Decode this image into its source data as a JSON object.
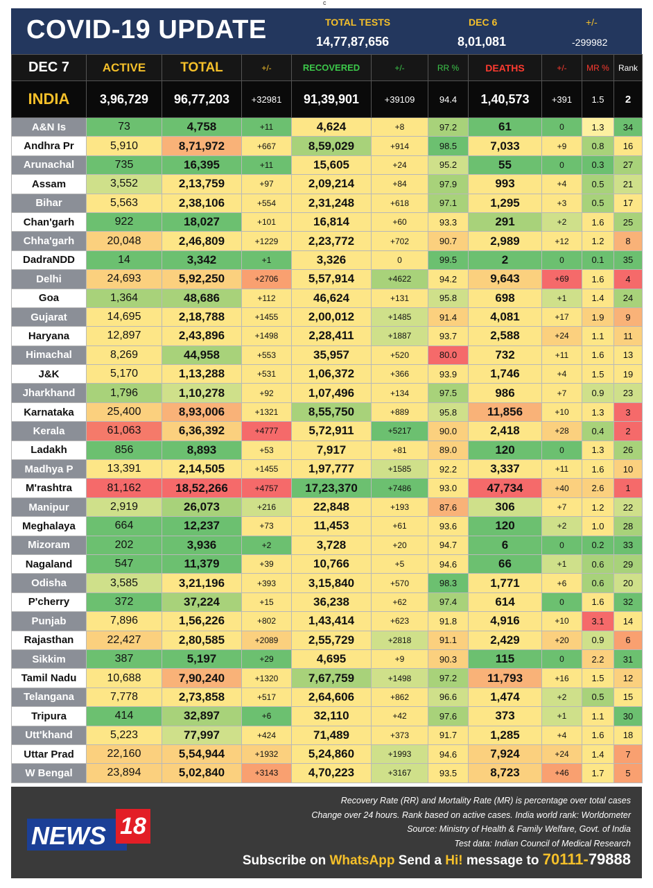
{
  "top_marker": "c",
  "header": {
    "title": "COVID-19 UPDATE",
    "total_tests_label": "TOTAL TESTS",
    "total_tests_value": "14,77,87,656",
    "date_label": "DEC 6",
    "date_value": "8,01,081",
    "change_label": "+/-",
    "change_value": "-299982"
  },
  "columns": {
    "date": "DEC 7",
    "active": "ACTIVE",
    "total": "TOTAL",
    "total_change": "+/-",
    "recovered": "RECOVERED",
    "recovered_change": "+/-",
    "rr": "RR %",
    "deaths": "DEATHS",
    "deaths_change": "+/-",
    "mr": "MR %",
    "rank": "Rank"
  },
  "column_colors": {
    "date": "#ffffff",
    "active": "#f5c02a",
    "total": "#f5c02a",
    "total_change": "#f5c02a",
    "recovered": "#3cc84a",
    "recovered_change": "#3cc84a",
    "rr": "#3cc84a",
    "deaths": "#ff3b30",
    "deaths_change": "#ff3b30",
    "mr": "#ff3b30",
    "rank": "#ffffff"
  },
  "india": {
    "name": "INDIA",
    "active": "3,96,729",
    "total": "96,77,203",
    "total_change": "+32981",
    "recovered": "91,39,901",
    "recovered_change": "+39109",
    "rr": "94.4",
    "deaths": "1,40,573",
    "deaths_change": "+391",
    "mr": "1.5",
    "rank": "2"
  },
  "states": [
    {
      "name": "A&N Is",
      "active": "73",
      "total": "4,758",
      "total_change": "+11",
      "recovered": "4,624",
      "recovered_change": "+8",
      "rr": "97.2",
      "deaths": "61",
      "deaths_change": "0",
      "mr": "1.3",
      "rank": "34",
      "colors": [
        "#6cc070",
        "#6cc070",
        "#6cc070",
        "#fde687",
        "#fde687",
        "#a8d27a",
        "#6cc070",
        "#6cc070",
        "#fdf0a0",
        "#6cc070"
      ]
    },
    {
      "name": "Andhra Pr",
      "active": "5,910",
      "total": "8,71,972",
      "total_change": "+667",
      "recovered": "8,59,029",
      "recovered_change": "+914",
      "rr": "98.5",
      "deaths": "7,033",
      "deaths_change": "+9",
      "mr": "0.8",
      "rank": "16",
      "colors": [
        "#fde687",
        "#f9b278",
        "#fde687",
        "#a8d27a",
        "#fde687",
        "#6cc070",
        "#fde687",
        "#fde687",
        "#a8d27a",
        "#fde687"
      ]
    },
    {
      "name": "Arunachal",
      "active": "735",
      "total": "16,395",
      "total_change": "+11",
      "recovered": "15,605",
      "recovered_change": "+24",
      "rr": "95.2",
      "deaths": "55",
      "deaths_change": "0",
      "mr": "0.3",
      "rank": "27",
      "colors": [
        "#6cc070",
        "#6cc070",
        "#6cc070",
        "#fde687",
        "#fde687",
        "#cfe08a",
        "#6cc070",
        "#6cc070",
        "#6cc070",
        "#a8d27a"
      ]
    },
    {
      "name": "Assam",
      "active": "3,552",
      "total": "2,13,759",
      "total_change": "+97",
      "recovered": "2,09,214",
      "recovered_change": "+84",
      "rr": "97.9",
      "deaths": "993",
      "deaths_change": "+4",
      "mr": "0.5",
      "rank": "21",
      "colors": [
        "#cfe08a",
        "#fde687",
        "#fde687",
        "#fde687",
        "#fde687",
        "#a8d27a",
        "#fde687",
        "#fde687",
        "#a8d27a",
        "#cfe08a"
      ]
    },
    {
      "name": "Bihar",
      "active": "5,563",
      "total": "2,38,106",
      "total_change": "+554",
      "recovered": "2,31,248",
      "recovered_change": "+618",
      "rr": "97.1",
      "deaths": "1,295",
      "deaths_change": "+3",
      "mr": "0.5",
      "rank": "17",
      "colors": [
        "#fde687",
        "#fde687",
        "#fde687",
        "#fde687",
        "#fde687",
        "#a8d27a",
        "#fde687",
        "#fde687",
        "#a8d27a",
        "#fde687"
      ]
    },
    {
      "name": "Chan'garh",
      "active": "922",
      "total": "18,027",
      "total_change": "+101",
      "recovered": "16,814",
      "recovered_change": "+60",
      "rr": "93.3",
      "deaths": "291",
      "deaths_change": "+2",
      "mr": "1.6",
      "rank": "25",
      "colors": [
        "#6cc070",
        "#6cc070",
        "#fde687",
        "#fde687",
        "#fde687",
        "#fde687",
        "#a8d27a",
        "#cfe08a",
        "#fde687",
        "#a8d27a"
      ]
    },
    {
      "name": "Chha'garh",
      "active": "20,048",
      "total": "2,46,809",
      "total_change": "+1229",
      "recovered": "2,23,772",
      "recovered_change": "+702",
      "rr": "90.7",
      "deaths": "2,989",
      "deaths_change": "+12",
      "mr": "1.2",
      "rank": "8",
      "colors": [
        "#fbd07e",
        "#fde687",
        "#fde687",
        "#fde687",
        "#fde687",
        "#fbd07e",
        "#fde687",
        "#fde687",
        "#fde687",
        "#f9b278"
      ]
    },
    {
      "name": "DadraNDD",
      "active": "14",
      "total": "3,342",
      "total_change": "+1",
      "recovered": "3,326",
      "recovered_change": "0",
      "rr": "99.5",
      "deaths": "2",
      "deaths_change": "0",
      "mr": "0.1",
      "rank": "35",
      "colors": [
        "#6cc070",
        "#6cc070",
        "#6cc070",
        "#fde687",
        "#fde687",
        "#6cc070",
        "#6cc070",
        "#6cc070",
        "#6cc070",
        "#6cc070"
      ]
    },
    {
      "name": "Delhi",
      "active": "24,693",
      "total": "5,92,250",
      "total_change": "+2706",
      "recovered": "5,57,914",
      "recovered_change": "+4622",
      "rr": "94.2",
      "deaths": "9,643",
      "deaths_change": "+69",
      "mr": "1.6",
      "rank": "4",
      "colors": [
        "#fbd07e",
        "#fbd07e",
        "#f9a070",
        "#fde687",
        "#a8d27a",
        "#fde687",
        "#fbd07e",
        "#f56a6a",
        "#fde687",
        "#f56a6a"
      ]
    },
    {
      "name": "Goa",
      "active": "1,364",
      "total": "48,686",
      "total_change": "+112",
      "recovered": "46,624",
      "recovered_change": "+131",
      "rr": "95.8",
      "deaths": "698",
      "deaths_change": "+1",
      "mr": "1.4",
      "rank": "24",
      "colors": [
        "#a8d27a",
        "#a8d27a",
        "#fde687",
        "#fde687",
        "#fde687",
        "#cfe08a",
        "#fde687",
        "#cfe08a",
        "#fde687",
        "#a8d27a"
      ]
    },
    {
      "name": "Gujarat",
      "active": "14,695",
      "total": "2,18,788",
      "total_change": "+1455",
      "recovered": "2,00,012",
      "recovered_change": "+1485",
      "rr": "91.4",
      "deaths": "4,081",
      "deaths_change": "+17",
      "mr": "1.9",
      "rank": "9",
      "colors": [
        "#fde687",
        "#fde687",
        "#fde687",
        "#fde687",
        "#cfe08a",
        "#fbd07e",
        "#fde687",
        "#fde687",
        "#fbd07e",
        "#f9b278"
      ]
    },
    {
      "name": "Haryana",
      "active": "12,897",
      "total": "2,43,896",
      "total_change": "+1498",
      "recovered": "2,28,411",
      "recovered_change": "+1887",
      "rr": "93.7",
      "deaths": "2,588",
      "deaths_change": "+24",
      "mr": "1.1",
      "rank": "11",
      "colors": [
        "#fde687",
        "#fde687",
        "#fde687",
        "#fde687",
        "#cfe08a",
        "#fde687",
        "#fde687",
        "#fbd07e",
        "#fde687",
        "#fbd07e"
      ]
    },
    {
      "name": "Himachal",
      "active": "8,269",
      "total": "44,958",
      "total_change": "+553",
      "recovered": "35,957",
      "recovered_change": "+520",
      "rr": "80.0",
      "deaths": "732",
      "deaths_change": "+11",
      "mr": "1.6",
      "rank": "13",
      "colors": [
        "#fde687",
        "#a8d27a",
        "#fde687",
        "#fde687",
        "#fde687",
        "#f56a6a",
        "#fde687",
        "#fde687",
        "#fde687",
        "#fde687"
      ]
    },
    {
      "name": "J&K",
      "active": "5,170",
      "total": "1,13,288",
      "total_change": "+531",
      "recovered": "1,06,372",
      "recovered_change": "+366",
      "rr": "93.9",
      "deaths": "1,746",
      "deaths_change": "+4",
      "mr": "1.5",
      "rank": "19",
      "colors": [
        "#fde687",
        "#fde687",
        "#fde687",
        "#fde687",
        "#fde687",
        "#fde687",
        "#fde687",
        "#fde687",
        "#fde687",
        "#fde687"
      ]
    },
    {
      "name": "Jharkhand",
      "active": "1,796",
      "total": "1,10,278",
      "total_change": "+92",
      "recovered": "1,07,496",
      "recovered_change": "+134",
      "rr": "97.5",
      "deaths": "986",
      "deaths_change": "+7",
      "mr": "0.9",
      "rank": "23",
      "colors": [
        "#a8d27a",
        "#cfe08a",
        "#fde687",
        "#fde687",
        "#fde687",
        "#a8d27a",
        "#fde687",
        "#fde687",
        "#cfe08a",
        "#cfe08a"
      ]
    },
    {
      "name": "Karnataka",
      "active": "25,400",
      "total": "8,93,006",
      "total_change": "+1321",
      "recovered": "8,55,750",
      "recovered_change": "+889",
      "rr": "95.8",
      "deaths": "11,856",
      "deaths_change": "+10",
      "mr": "1.3",
      "rank": "3",
      "colors": [
        "#fbd07e",
        "#f9b278",
        "#fde687",
        "#a8d27a",
        "#fde687",
        "#cfe08a",
        "#f9b278",
        "#fde687",
        "#fde687",
        "#f56a6a"
      ]
    },
    {
      "name": "Kerala",
      "active": "61,063",
      "total": "6,36,392",
      "total_change": "+4777",
      "recovered": "5,72,911",
      "recovered_change": "+5217",
      "rr": "90.0",
      "deaths": "2,418",
      "deaths_change": "+28",
      "mr": "0.4",
      "rank": "2",
      "colors": [
        "#f57a6a",
        "#fbd07e",
        "#f56a6a",
        "#fde687",
        "#6cc070",
        "#fbd07e",
        "#fde687",
        "#fbd07e",
        "#a8d27a",
        "#f56a6a"
      ]
    },
    {
      "name": "Ladakh",
      "active": "856",
      "total": "8,893",
      "total_change": "+53",
      "recovered": "7,917",
      "recovered_change": "+81",
      "rr": "89.0",
      "deaths": "120",
      "deaths_change": "0",
      "mr": "1.3",
      "rank": "26",
      "colors": [
        "#6cc070",
        "#6cc070",
        "#fde687",
        "#fde687",
        "#fde687",
        "#fbd07e",
        "#6cc070",
        "#6cc070",
        "#fde687",
        "#a8d27a"
      ]
    },
    {
      "name": "Madhya P",
      "active": "13,391",
      "total": "2,14,505",
      "total_change": "+1455",
      "recovered": "1,97,777",
      "recovered_change": "+1585",
      "rr": "92.2",
      "deaths": "3,337",
      "deaths_change": "+11",
      "mr": "1.6",
      "rank": "10",
      "colors": [
        "#fde687",
        "#fde687",
        "#fde687",
        "#fde687",
        "#cfe08a",
        "#fde687",
        "#fde687",
        "#fde687",
        "#fde687",
        "#fbd07e"
      ]
    },
    {
      "name": "M'rashtra",
      "active": "81,162",
      "total": "18,52,266",
      "total_change": "+4757",
      "recovered": "17,23,370",
      "recovered_change": "+7486",
      "rr": "93.0",
      "deaths": "47,734",
      "deaths_change": "+40",
      "mr": "2.6",
      "rank": "1",
      "colors": [
        "#f56a6a",
        "#f56a6a",
        "#f56a6a",
        "#6cc070",
        "#6cc070",
        "#fde687",
        "#f56a6a",
        "#fbd07e",
        "#fbd07e",
        "#f56a6a"
      ]
    },
    {
      "name": "Manipur",
      "active": "2,919",
      "total": "26,073",
      "total_change": "+216",
      "recovered": "22,848",
      "recovered_change": "+193",
      "rr": "87.6",
      "deaths": "306",
      "deaths_change": "+7",
      "mr": "1.2",
      "rank": "22",
      "colors": [
        "#cfe08a",
        "#a8d27a",
        "#cfe08a",
        "#fde687",
        "#fde687",
        "#f9b278",
        "#cfe08a",
        "#fde687",
        "#fde687",
        "#cfe08a"
      ]
    },
    {
      "name": "Meghalaya",
      "active": "664",
      "total": "12,237",
      "total_change": "+73",
      "recovered": "11,453",
      "recovered_change": "+61",
      "rr": "93.6",
      "deaths": "120",
      "deaths_change": "+2",
      "mr": "1.0",
      "rank": "28",
      "colors": [
        "#6cc070",
        "#6cc070",
        "#fde687",
        "#fde687",
        "#fde687",
        "#fde687",
        "#6cc070",
        "#cfe08a",
        "#fde687",
        "#a8d27a"
      ]
    },
    {
      "name": "Mizoram",
      "active": "202",
      "total": "3,936",
      "total_change": "+2",
      "recovered": "3,728",
      "recovered_change": "+20",
      "rr": "94.7",
      "deaths": "6",
      "deaths_change": "0",
      "mr": "0.2",
      "rank": "33",
      "colors": [
        "#6cc070",
        "#6cc070",
        "#6cc070",
        "#fde687",
        "#fde687",
        "#fde687",
        "#6cc070",
        "#6cc070",
        "#6cc070",
        "#6cc070"
      ]
    },
    {
      "name": "Nagaland",
      "active": "547",
      "total": "11,379",
      "total_change": "+39",
      "recovered": "10,766",
      "recovered_change": "+5",
      "rr": "94.6",
      "deaths": "66",
      "deaths_change": "+1",
      "mr": "0.6",
      "rank": "29",
      "colors": [
        "#6cc070",
        "#6cc070",
        "#fde687",
        "#fde687",
        "#fde687",
        "#fde687",
        "#6cc070",
        "#cfe08a",
        "#a8d27a",
        "#a8d27a"
      ]
    },
    {
      "name": "Odisha",
      "active": "3,585",
      "total": "3,21,196",
      "total_change": "+393",
      "recovered": "3,15,840",
      "recovered_change": "+570",
      "rr": "98.3",
      "deaths": "1,771",
      "deaths_change": "+6",
      "mr": "0.6",
      "rank": "20",
      "colors": [
        "#cfe08a",
        "#fde687",
        "#fde687",
        "#fde687",
        "#fde687",
        "#6cc070",
        "#fde687",
        "#fde687",
        "#a8d27a",
        "#cfe08a"
      ]
    },
    {
      "name": "P'cherry",
      "active": "372",
      "total": "37,224",
      "total_change": "+15",
      "recovered": "36,238",
      "recovered_change": "+62",
      "rr": "97.4",
      "deaths": "614",
      "deaths_change": "0",
      "mr": "1.6",
      "rank": "32",
      "colors": [
        "#6cc070",
        "#a8d27a",
        "#fde687",
        "#fde687",
        "#fde687",
        "#a8d27a",
        "#fde687",
        "#6cc070",
        "#fde687",
        "#6cc070"
      ]
    },
    {
      "name": "Punjab",
      "active": "7,896",
      "total": "1,56,226",
      "total_change": "+802",
      "recovered": "1,43,414",
      "recovered_change": "+623",
      "rr": "91.8",
      "deaths": "4,916",
      "deaths_change": "+10",
      "mr": "3.1",
      "rank": "14",
      "colors": [
        "#fde687",
        "#fde687",
        "#fde687",
        "#fde687",
        "#fde687",
        "#fde687",
        "#fde687",
        "#fde687",
        "#f56a6a",
        "#fde687"
      ]
    },
    {
      "name": "Rajasthan",
      "active": "22,427",
      "total": "2,80,585",
      "total_change": "+2089",
      "recovered": "2,55,729",
      "recovered_change": "+2818",
      "rr": "91.1",
      "deaths": "2,429",
      "deaths_change": "+20",
      "mr": "0.9",
      "rank": "6",
      "colors": [
        "#fbd07e",
        "#fde687",
        "#fbd07e",
        "#fde687",
        "#cfe08a",
        "#fbd07e",
        "#fde687",
        "#fbd07e",
        "#cfe08a",
        "#f9a070"
      ]
    },
    {
      "name": "Sikkim",
      "active": "387",
      "total": "5,197",
      "total_change": "+29",
      "recovered": "4,695",
      "recovered_change": "+9",
      "rr": "90.3",
      "deaths": "115",
      "deaths_change": "0",
      "mr": "2.2",
      "rank": "31",
      "colors": [
        "#6cc070",
        "#6cc070",
        "#6cc070",
        "#fde687",
        "#fde687",
        "#fbd07e",
        "#6cc070",
        "#6cc070",
        "#fbd07e",
        "#6cc070"
      ]
    },
    {
      "name": "Tamil Nadu",
      "active": "10,688",
      "total": "7,90,240",
      "total_change": "+1320",
      "recovered": "7,67,759",
      "recovered_change": "+1498",
      "rr": "97.2",
      "deaths": "11,793",
      "deaths_change": "+16",
      "mr": "1.5",
      "rank": "12",
      "colors": [
        "#fde687",
        "#f9b278",
        "#fde687",
        "#a8d27a",
        "#cfe08a",
        "#a8d27a",
        "#f9b278",
        "#fde687",
        "#fde687",
        "#fbd07e"
      ]
    },
    {
      "name": "Telangana",
      "active": "7,778",
      "total": "2,73,858",
      "total_change": "+517",
      "recovered": "2,64,606",
      "recovered_change": "+862",
      "rr": "96.6",
      "deaths": "1,474",
      "deaths_change": "+2",
      "mr": "0.5",
      "rank": "15",
      "colors": [
        "#fde687",
        "#fde687",
        "#fde687",
        "#fde687",
        "#fde687",
        "#cfe08a",
        "#fde687",
        "#cfe08a",
        "#a8d27a",
        "#fde687"
      ]
    },
    {
      "name": "Tripura",
      "active": "414",
      "total": "32,897",
      "total_change": "+6",
      "recovered": "32,110",
      "recovered_change": "+42",
      "rr": "97.6",
      "deaths": "373",
      "deaths_change": "+1",
      "mr": "1.1",
      "rank": "30",
      "colors": [
        "#6cc070",
        "#a8d27a",
        "#6cc070",
        "#fde687",
        "#fde687",
        "#a8d27a",
        "#fde687",
        "#cfe08a",
        "#fde687",
        "#6cc070"
      ]
    },
    {
      "name": "Utt'khand",
      "active": "5,223",
      "total": "77,997",
      "total_change": "+424",
      "recovered": "71,489",
      "recovered_change": "+373",
      "rr": "91.7",
      "deaths": "1,285",
      "deaths_change": "+4",
      "mr": "1.6",
      "rank": "18",
      "colors": [
        "#fde687",
        "#cfe08a",
        "#fde687",
        "#fde687",
        "#fde687",
        "#fde687",
        "#fde687",
        "#fde687",
        "#fde687",
        "#fde687"
      ]
    },
    {
      "name": "Uttar Prad",
      "active": "22,160",
      "total": "5,54,944",
      "total_change": "+1932",
      "recovered": "5,24,860",
      "recovered_change": "+1993",
      "rr": "94.6",
      "deaths": "7,924",
      "deaths_change": "+24",
      "mr": "1.4",
      "rank": "7",
      "colors": [
        "#fbd07e",
        "#fbd07e",
        "#fbd07e",
        "#fde687",
        "#cfe08a",
        "#fde687",
        "#fbd07e",
        "#fbd07e",
        "#fde687",
        "#f9a070"
      ]
    },
    {
      "name": "W Bengal",
      "active": "23,894",
      "total": "5,02,840",
      "total_change": "+3143",
      "recovered": "4,70,223",
      "recovered_change": "+3167",
      "rr": "93.5",
      "deaths": "8,723",
      "deaths_change": "+46",
      "mr": "1.7",
      "rank": "5",
      "colors": [
        "#fbd07e",
        "#fbd07e",
        "#f9a070",
        "#fde687",
        "#cfe08a",
        "#fde687",
        "#fbd07e",
        "#f9a070",
        "#fde687",
        "#f9a070"
      ]
    }
  ],
  "footer": {
    "notes": [
      "Recovery Rate (RR) and Mortality Rate (MR) is percentage over total cases",
      "Change over 24 hours. Rank based on active cases. India world rank: Worldometer",
      "Source: Ministry of Health & Family Welfare, Govt. of India",
      "Test data: Indian Council of Medical Research"
    ],
    "logo_word": "NEWS",
    "logo_number": "18",
    "subscribe": {
      "part1": "Subscribe on ",
      "whatsapp": "WhatsApp",
      "part2": " Send a ",
      "hi": "Hi!",
      "part3": " message to ",
      "phone_a": "70111-",
      "phone_b": "79888"
    }
  },
  "palette": {
    "navy": "#23375e",
    "gold": "#f5c02a",
    "green_head": "#3cc84a",
    "red_head": "#ff3b30",
    "footer_bg": "#3a3a3a",
    "logo_blue": "#1b3f96",
    "logo_red": "#e31e26"
  }
}
